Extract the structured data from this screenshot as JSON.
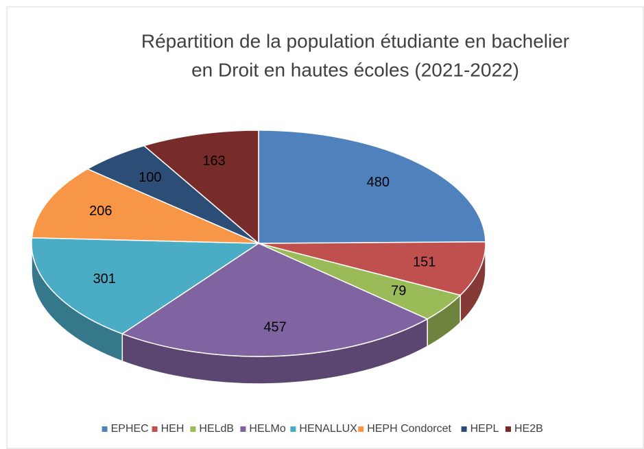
{
  "chart_data": {
    "type": "pie3d",
    "title": [
      "Répartition de la population étudiante en bachelier",
      "en Droit en hautes écoles (2021-2022)"
    ],
    "categories": [
      "EPHEC",
      "HEH",
      "HELdB",
      "HELMo",
      "HENALLUX",
      "HEPH Condorcet",
      "HEPL",
      "HE2B"
    ],
    "values": [
      480,
      151,
      79,
      457,
      301,
      206,
      100,
      163
    ],
    "colors": [
      "#4f81bd",
      "#c0504d",
      "#9bbb59",
      "#8064a2",
      "#4bacc6",
      "#f79646",
      "#2c4d75",
      "#772c2a"
    ],
    "legend": "bottom"
  }
}
